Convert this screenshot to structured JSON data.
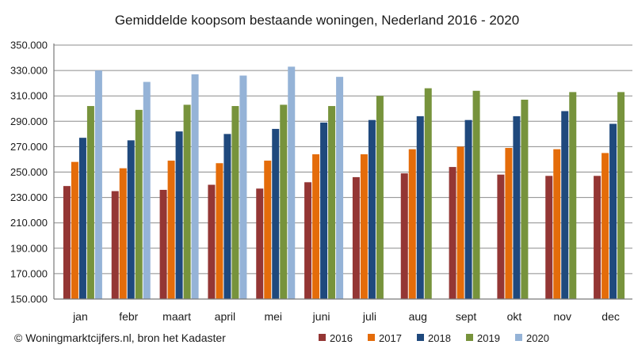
{
  "chart_data": {
    "type": "bar",
    "title": "Gemiddelde koopsom bestaande woningen, Nederland  2016 - 2020",
    "xlabel": "",
    "ylabel": "",
    "ylim": [
      150000,
      350000
    ],
    "yticks": [
      150000,
      170000,
      190000,
      210000,
      230000,
      250000,
      270000,
      290000,
      310000,
      330000,
      350000
    ],
    "ytick_labels": [
      "150.000",
      "170.000",
      "190.000",
      "210.000",
      "230.000",
      "250.000",
      "270.000",
      "290.000",
      "310.000",
      "330.000",
      "350.000"
    ],
    "grid": true,
    "legend_position": "bottom-right",
    "categories": [
      "jan",
      "febr",
      "maart",
      "april",
      "mei",
      "juni",
      "juli",
      "aug",
      "sept",
      "okt",
      "nov",
      "dec"
    ],
    "series": [
      {
        "name": "2016",
        "color": "#943634",
        "values": [
          239000,
          235000,
          236000,
          240000,
          237000,
          242000,
          246000,
          249000,
          254000,
          248000,
          247000,
          247000
        ]
      },
      {
        "name": "2017",
        "color": "#E46C0A",
        "values": [
          258000,
          253000,
          259000,
          257000,
          259000,
          264000,
          264000,
          268000,
          270000,
          269000,
          268000,
          265000
        ]
      },
      {
        "name": "2018",
        "color": "#1F497D",
        "values": [
          277000,
          275000,
          282000,
          280000,
          284000,
          289000,
          291000,
          294000,
          291000,
          294000,
          298000,
          288000
        ]
      },
      {
        "name": "2019",
        "color": "#77933C",
        "values": [
          302000,
          299000,
          303000,
          302000,
          303000,
          302000,
          310000,
          316000,
          314000,
          307000,
          313000,
          313000
        ]
      },
      {
        "name": "2020",
        "color": "#95B3D7",
        "values": [
          330000,
          321000,
          327000,
          326000,
          333000,
          325000,
          null,
          null,
          null,
          null,
          null,
          null
        ]
      }
    ],
    "source_note": "© Woningmarktcijfers.nl, bron het Kadaster"
  }
}
